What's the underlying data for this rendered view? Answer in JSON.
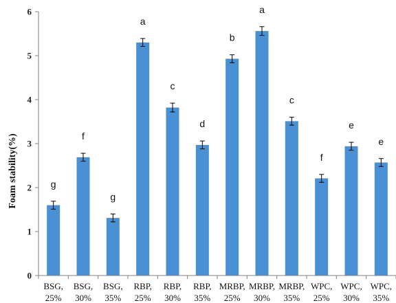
{
  "chart_data": {
    "type": "bar",
    "title": "",
    "xlabel": "",
    "ylabel": "Foam stability(%)",
    "ylim": [
      0,
      6
    ],
    "yticks": [
      "0",
      "1",
      "2",
      "3",
      "4",
      "5",
      "6"
    ],
    "grid": false,
    "legend": "none",
    "bar_color": "#4a90d4",
    "categories": [
      [
        "BSG,",
        "25%"
      ],
      [
        "BSG,",
        "30%"
      ],
      [
        "BSG,",
        "35%"
      ],
      [
        "RBP,",
        "25%"
      ],
      [
        "RBP,",
        "30%"
      ],
      [
        "RBP,",
        "35%"
      ],
      [
        "MRBP,",
        "25%"
      ],
      [
        "MRBP,",
        "30%"
      ],
      [
        "MRBP,",
        "35%"
      ],
      [
        "WPC,",
        "25%"
      ],
      [
        "WPC,",
        "30%"
      ],
      [
        "WPC,",
        "35%"
      ]
    ],
    "values": [
      1.6,
      2.69,
      1.31,
      5.3,
      3.82,
      2.97,
      4.93,
      5.56,
      3.51,
      2.21,
      2.94,
      2.57
    ],
    "errors": [
      0.09,
      0.09,
      0.09,
      0.09,
      0.1,
      0.09,
      0.09,
      0.1,
      0.09,
      0.09,
      0.09,
      0.09
    ],
    "annotations": [
      "g",
      "f",
      "g",
      "a",
      "c",
      "d",
      "b",
      "a",
      "c",
      "f",
      "e",
      "e"
    ]
  }
}
